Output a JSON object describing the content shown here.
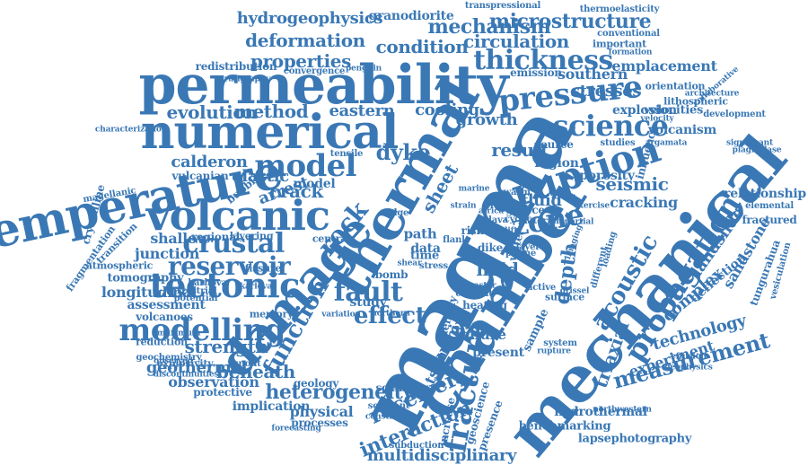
{
  "color": "#3a78b5",
  "words": [
    "magma",
    "chamber",
    "mechanical",
    "permeability",
    "numerical",
    "thermal",
    "damage",
    "temperature",
    "volcanic",
    "model",
    "eruption",
    "zone",
    "tectonic",
    "crustal",
    "reservoir",
    "modelling",
    "fault",
    "fracture",
    "propagation",
    "science",
    "pressure",
    "thickness",
    "mechanism",
    "condition",
    "circulation",
    "deformation",
    "properties",
    "microstructure",
    "hydrogeophysics",
    "granodiorite",
    "transpressional",
    "thermoelasticity",
    "conventional",
    "important",
    "emplacement",
    "formation",
    "southern",
    "orientation",
    "explosion",
    "stresses",
    "velocities",
    "velocity",
    "volcanism",
    "seismic",
    "cracking",
    "porosity",
    "influence",
    "relationship",
    "landslide",
    "sandstone",
    "depth",
    "measurement",
    "experiment",
    "technology",
    "acoustic",
    "complex",
    "deflection",
    "triaxial",
    "hydrothermal",
    "benchmarking",
    "lapsephotography",
    "multidisciplinary",
    "interaction",
    "receiver",
    "heterogeneity",
    "physical",
    "implication",
    "beneath",
    "observation",
    "protective",
    "geothermal",
    "strength",
    "reduction",
    "geochemistry",
    "assessment",
    "volcanoes",
    "longitudinal",
    "junction",
    "shallow",
    "tomography",
    "atmospheric",
    "fragmentation",
    "transition",
    "crystalline",
    "magellanic",
    "characterization",
    "evolution",
    "method",
    "eastern",
    "calderon",
    "vulcanian",
    "elastic",
    "arrest",
    "crack",
    "bubble",
    "regional",
    "terrestrial",
    "fissure",
    "memory",
    "study",
    "function",
    "effect",
    "held",
    "fluid",
    "failure",
    "present",
    "rupture",
    "sample",
    "system",
    "surface",
    "grissel",
    "active",
    "water",
    "northwestern",
    "effusion",
    "geophysics",
    "tungurahua",
    "vesiculation",
    "fractured",
    "elemental",
    "development",
    "lithospheric",
    "collaborative",
    "architecture",
    "significant",
    "plagioclase",
    "studies",
    "argamata",
    "emission",
    "penguin",
    "stratigraphy",
    "redistribution",
    "convergence",
    "cooling",
    "growth",
    "result",
    "source",
    "region",
    "greece",
    "cyclic",
    "dyke",
    "rock",
    "sheet",
    "tensile",
    "swarm",
    "risk",
    "data",
    "time",
    "path",
    "bomb",
    "turkey",
    "tsunami",
    "density",
    "geology",
    "scanning",
    "segment",
    "increase",
    "presence",
    "geoscience",
    "subduction",
    "forecasting",
    "processes",
    "constraint",
    "runout",
    "discontinuities",
    "observed",
    "maximum",
    "explosivity",
    "potential",
    "layering",
    "karlova",
    "karhova",
    "central",
    "variation",
    "heating",
    "conduit",
    "disaster",
    "marine",
    "lava",
    "africa",
    "northern",
    "ridge",
    "exercise",
    "loading",
    "different",
    "imaging",
    "material",
    "partial",
    "layer",
    "plume",
    "dike",
    "sill",
    "flank",
    "vent",
    "uplift",
    "creep",
    "stress",
    "shear",
    "strain",
    "model"
  ]
}
